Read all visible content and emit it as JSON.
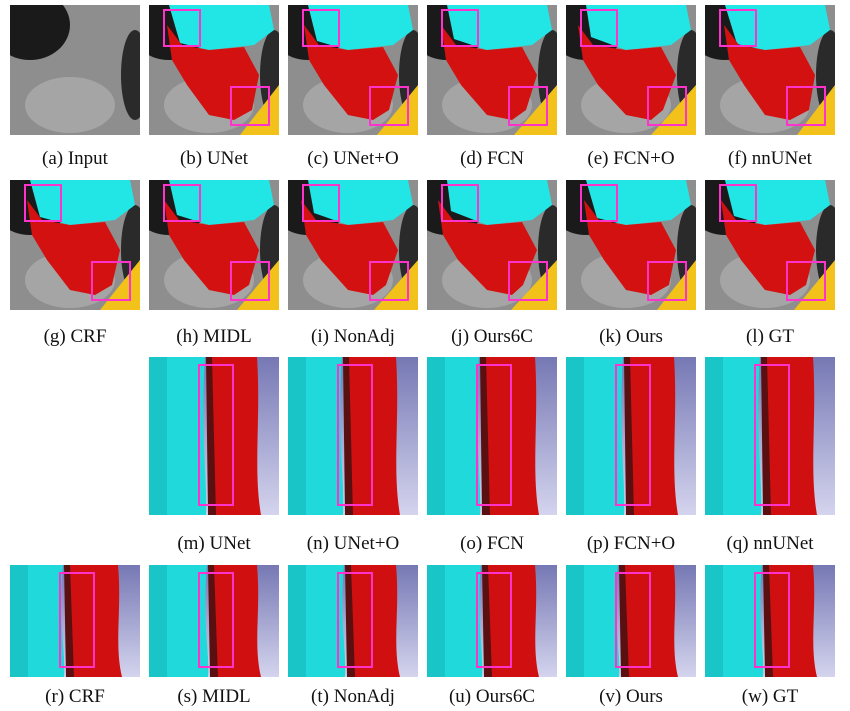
{
  "captions": [
    "(a) Input",
    "(b) UNet",
    "(c) UNet+O",
    "(d) FCN",
    "(e) FCN+O",
    "(f) nnUNet",
    "(g) CRF",
    "(h) MIDL",
    "(i) NonAdj",
    "(j) Ours6C",
    "(k) Ours",
    "(l) GT",
    "(m) UNet",
    "(n) UNet+O",
    "(o) FCN",
    "(p) FCN+O",
    "(q) nnUNet",
    "(r) CRF",
    "(s) MIDL",
    "(t) NonAdj",
    "(u) Ours6C",
    "(v) Ours",
    "(w) GT"
  ]
}
